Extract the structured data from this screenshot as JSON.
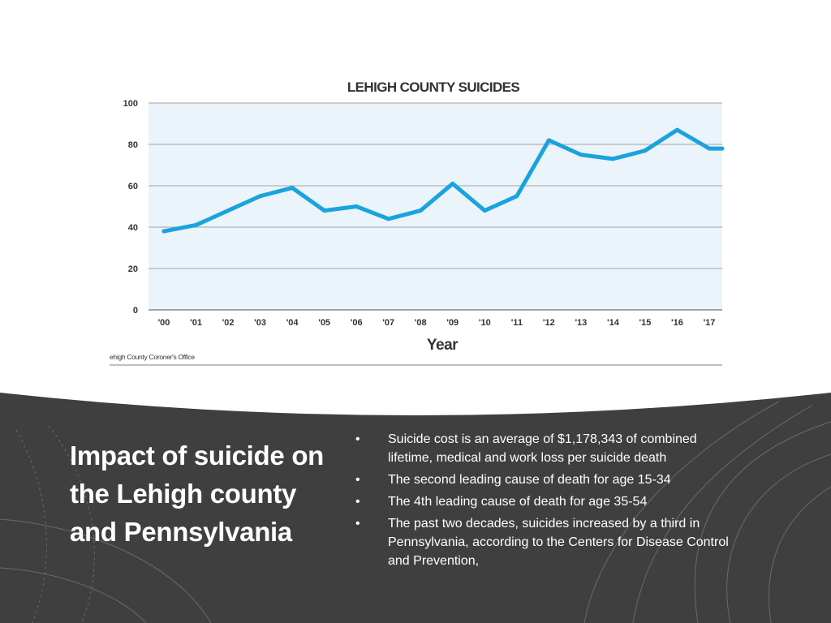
{
  "slide": {
    "title": "Impact of suicide on the Lehigh county and Pennsylvania",
    "bullets": [
      "Suicide cost is an average of  $1,178,343 of combined lifetime, medical and work loss per suicide death",
      "The second leading cause of death for age 15-34",
      "The 4th leading cause of death for age 35-54",
      "The past two decades, suicides increased by a third in Pennsylvania, according to the Centers for Disease Control and Prevention,"
    ],
    "bullet_symbol": "•",
    "colors": {
      "panel": "#3f3f3f",
      "panel_text": "#ffffff",
      "line": "#1aa3dd",
      "plot_band": "#eaf4fa"
    }
  },
  "chart_data": {
    "type": "line",
    "title": "LEHIGH COUNTY SUICIDES",
    "xlabel": "Year",
    "ylabel": "",
    "source": "ehigh County Coroner's Office",
    "categories": [
      "'00",
      "'01",
      "'02",
      "'03",
      "'04",
      "'05",
      "'06",
      "'07",
      "'08",
      "'09",
      "'10",
      "'11",
      "'12",
      "'13",
      "'14",
      "'15",
      "'16",
      "'17"
    ],
    "values": [
      38,
      41,
      48,
      55,
      59,
      48,
      50,
      44,
      48,
      61,
      48,
      55,
      82,
      75,
      73,
      77,
      87,
      78
    ],
    "ylim": [
      0,
      100
    ],
    "yticks": [
      0,
      20,
      40,
      60,
      80,
      100
    ],
    "grid": true,
    "legend": "none"
  }
}
